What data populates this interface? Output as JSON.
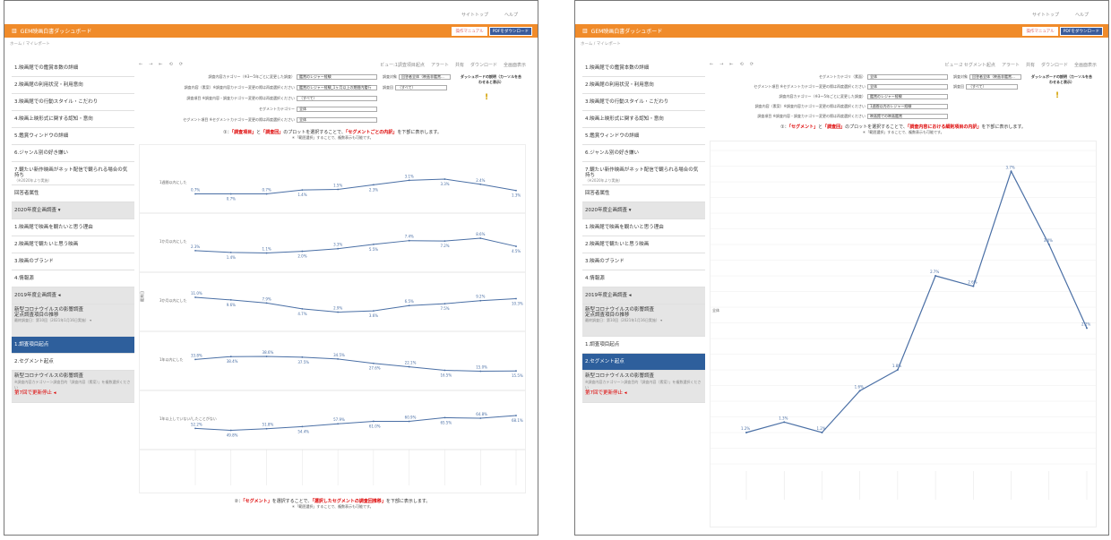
{
  "topnav": [
    "サイトトップ",
    "ヘルプ"
  ],
  "header": {
    "title": "GEM映画白書ダッシュボード",
    "manual": "操作マニュアル",
    "pdf": "PDFをダウンロード"
  },
  "breadcrumb": "ホーム  /  マイレポート",
  "sidebar": {
    "items": [
      "1.映画館での鑑賞本数の詳細",
      "2.映画館の利用状況・利用意向",
      "3.映画館での行動スタイル・こだわり",
      "4.映画上映形式に関する認知・意向",
      "5.鑑賞ウィンドウの詳細",
      "6.ジャンル別の好き嫌い"
    ],
    "item7": "7.観たい新作映画がネット配信で観られる場合の気持ち",
    "item7_note": "（※2020年より実施）",
    "resp": "回答者属性",
    "sec2020": "2020年度企画調査 ▾",
    "items2020": [
      "1.映画館で映画を観たいと思う理由",
      "2.映画館で観たいと思う映画",
      "3.映画のブランド",
      "4.情報源"
    ],
    "sec2019": "2019年度企画調査 ◂",
    "covid_title": "新型コロナウイルスの影響調査",
    "covid_sub": "定点調査項目の推移",
    "covid_note": "最終調査日：第10回（2021年1月16日実施） ▾",
    "fixed": "1.調査項目起点",
    "segment": "2.セグメント起点",
    "covid2_title": "新型コロナウイルスの影響調査",
    "covid2_note": "※調査内容カテゴリー＞調査目的「調査内容（素案）」を複数選択ください",
    "covid2_red": "第7回で更新停止 ◂"
  },
  "toolbar": {
    "nav": [
      "←",
      "→",
      "⇤",
      "⟲",
      "⟳"
    ],
    "view1": "ビュー:1調査項目起点",
    "view2": "ビュー:2 セグメント起点",
    "alert": "アラート",
    "share": "共有",
    "download": "ダウンロード",
    "full": "全画面表示"
  },
  "form1": [
    {
      "label": "調査内容カテゴリー（※3～5年ごとに変更した調査）",
      "value": "鑑賞のレジャー経験"
    },
    {
      "label": "調査内容（素案）※調査内容カテゴリー変更の際は再度選択ください",
      "value": "鑑賞のレジャー経験_1ヶ月以上の期間内鑑行"
    },
    {
      "label": "調査項目 ※調査内容・調査カテゴリー変更の際は再度選択ください",
      "value": "（すべて）"
    },
    {
      "label": "セグメントカテゴリー",
      "value": "全体"
    },
    {
      "label": "セグメント項目 ※セグメントカテゴリー変更の際は再度選択ください",
      "value": "全体"
    }
  ],
  "form1r": [
    {
      "label": "調査対象",
      "value": "回答者全体（映画非鑑賞..."
    },
    {
      "label": "調査回",
      "value": "（すべて）"
    }
  ],
  "form2": [
    {
      "label": "セグメントカテゴリ（素面）",
      "value": "全体"
    },
    {
      "label": "セグメント項目 ※セグメントカテゴリー変更の際は再度選択ください",
      "value": "全体"
    },
    {
      "label": "調査内容カテゴリー（※3～5年ごとに変更した調査）",
      "value": "鑑賞のレジャー経験"
    },
    {
      "label": "調査内容（素案）※調査内容カテゴリー変更の際は再度選択ください",
      "value": "1週間以内のレジャー経験"
    },
    {
      "label": "調査項目 ※調査内容・調査カテゴリー変更の際は再度選択ください",
      "value": "映画館での映画鑑賞"
    }
  ],
  "form2r": [
    {
      "label": "調査対象",
      "value": "回答者全体（映画非鑑賞..."
    },
    {
      "label": "調査回",
      "value": "（すべて）"
    }
  ],
  "dash_tip": "ダッシュボードの説明（カーソルを合わせると表示）",
  "inst1": {
    "a": "①：",
    "b": "「調査項目」",
    "c": "と",
    "d": "「調査回」",
    "e": "のプロットを選択することで、",
    "f": "「セグメントごとの内訳」",
    "g": "を下部に表示します。",
    "note": "＊「範囲選択」することで、複数表示も可能です。"
  },
  "inst1b": {
    "a": "②：",
    "b": "「セグメント」",
    "c": "を選択することで、",
    "d": "「選択したセグメントの調査回推移」",
    "e": "を下部に表示します。",
    "note": "＊「範囲選択」することで、複数表示も可能です。"
  },
  "inst2": {
    "a": "①：",
    "b": "「セグメント」",
    "c": "と",
    "d": "「調査回」",
    "e": "のプロットを選択することで、",
    "f": "「調査内容における細則項目の内訳」",
    "g": "を下部に表示します。",
    "note": "＊「範囲選択」することで、複数表示も可能です。"
  },
  "chart_data": [
    {
      "type": "line",
      "ylabel": "鑑賞日",
      "series": [
        {
          "name": "1週間以内にした",
          "values": [
            0.7,
            0.7,
            0.7,
            1.4,
            1.5,
            2.3,
            3.1,
            3.3,
            2.4,
            1.3
          ]
        },
        {
          "name": "1か月以内にした",
          "values": [
            2.3,
            1.4,
            1.1,
            2.0,
            3.3,
            5.5,
            7.4,
            7.2,
            8.6,
            4.5
          ]
        },
        {
          "name": "3か月以内にした",
          "values": [
            11.0,
            9.6,
            7.9,
            4.7,
            2.9,
            3.6,
            6.5,
            7.5,
            9.2,
            10.3
          ]
        },
        {
          "name": "1年以内にした",
          "values": [
            33.8,
            38.4,
            38.6,
            37.5,
            34.5,
            27.6,
            22.1,
            16.5,
            15.0,
            15.5
          ]
        },
        {
          "name": "1年以上していない/したことがない",
          "values": [
            52.2,
            49.8,
            51.8,
            54.4,
            57.9,
            61.0,
            60.9,
            65.5,
            64.8,
            68.1
          ]
        }
      ]
    },
    {
      "type": "line",
      "series": [
        {
          "name": "全体",
          "values": [
            1.2,
            1.3,
            1.2,
            1.6,
            1.8,
            2.7,
            2.6,
            3.7,
            3.0,
            2.2
          ]
        }
      ]
    }
  ]
}
